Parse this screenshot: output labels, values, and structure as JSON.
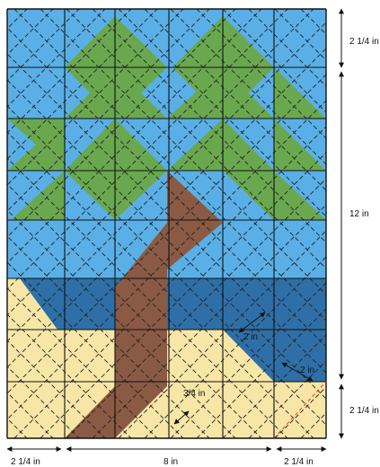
{
  "diagram": {
    "colors": {
      "sky": "#5aafe6",
      "leaf": "#6aa84f",
      "trunk": "#8a5a44",
      "water": "#2e6fa7",
      "sand": "#f7e6a6",
      "grid": "#111111",
      "quilt_line": "#222222",
      "cut_line": "#e23b2e"
    },
    "labels": {
      "top_right": "2 1/4 in",
      "right_middle": "12 in",
      "bottom_right_side": "2 1/4 in",
      "bottom_left": "2 1/4 in",
      "bottom_middle": "8 in",
      "bottom_right": "2 1/4 in",
      "inner_2in_a": "2 in",
      "inner_2in_b": "2 in",
      "inner_3_4in": "3/4 in"
    }
  }
}
